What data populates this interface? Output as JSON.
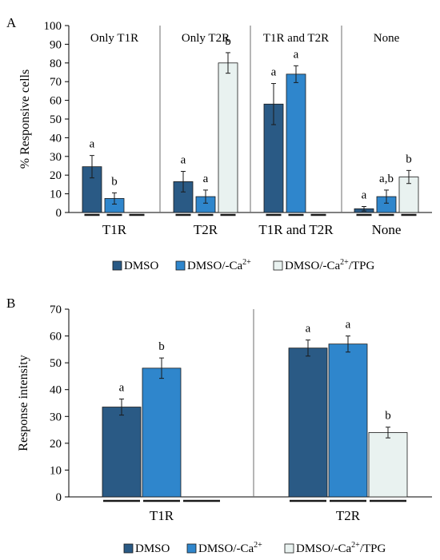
{
  "colors": {
    "DMSO": "#2a5a85",
    "DMSO/-Ca2+": "#2f86cc",
    "DMSO/-Ca2+/TPG": "#e9f2f0",
    "axis": "#000000",
    "divider": "#6e6e6e"
  },
  "chart_data": [
    {
      "type": "bar",
      "panel_label": "A",
      "ylabel": "% Responsive cells",
      "ylim": [
        0,
        100
      ],
      "yticks": [
        0,
        10,
        20,
        30,
        40,
        50,
        60,
        70,
        80,
        90,
        100
      ],
      "grid": false,
      "legend_position": "bottom",
      "group_titles": [
        "Only T1R",
        "Only T2R",
        "T1R and T2R",
        "None"
      ],
      "categories": [
        "T1R",
        "T2R",
        "T1R and T2R",
        "None"
      ],
      "series": [
        {
          "name": "DMSO",
          "values": [
            24.5,
            16.5,
            58,
            2
          ],
          "errors": [
            6,
            5.5,
            11,
            1.2
          ],
          "labels": [
            "a",
            "a",
            "a",
            "a"
          ]
        },
        {
          "name": "DMSO/-Ca2+",
          "values": [
            7.5,
            8.5,
            74,
            8.5
          ],
          "errors": [
            3,
            3.5,
            4.5,
            3.5
          ],
          "labels": [
            "b",
            "a",
            "a",
            "a,b"
          ]
        },
        {
          "name": "DMSO/-Ca2+/TPG",
          "values": [
            0,
            80,
            0,
            19
          ],
          "errors": [
            0,
            5.5,
            0,
            3.5
          ],
          "labels": [
            "",
            "b",
            "",
            "b"
          ]
        }
      ],
      "legend": [
        {
          "main": "DMSO",
          "sup": ""
        },
        {
          "main": "DMSO/-Ca",
          "sup": "2+"
        },
        {
          "main": "DMSO/-Ca",
          "sup": "2+",
          "after": "/TPG"
        }
      ]
    },
    {
      "type": "bar",
      "panel_label": "B",
      "ylabel": "Response intensity",
      "ylim": [
        0,
        70
      ],
      "yticks": [
        0,
        10,
        20,
        30,
        40,
        50,
        60,
        70
      ],
      "grid": false,
      "legend_position": "bottom",
      "categories": [
        "T1R",
        "T2R"
      ],
      "series": [
        {
          "name": "DMSO",
          "values": [
            33.5,
            55.5
          ],
          "errors": [
            3,
            3
          ],
          "labels": [
            "a",
            "a"
          ]
        },
        {
          "name": "DMSO/-Ca2+",
          "values": [
            48,
            57
          ],
          "errors": [
            3.8,
            3
          ],
          "labels": [
            "b",
            "a"
          ]
        },
        {
          "name": "DMSO/-Ca2+/TPG",
          "values": [
            0,
            24
          ],
          "errors": [
            0,
            2
          ],
          "labels": [
            "",
            "b"
          ]
        }
      ],
      "legend": [
        {
          "main": "DMSO",
          "sup": ""
        },
        {
          "main": "DMSO/-Ca",
          "sup": "2+"
        },
        {
          "main": "DMSO/-Ca",
          "sup": "2+",
          "after": "/TPG"
        }
      ]
    }
  ]
}
